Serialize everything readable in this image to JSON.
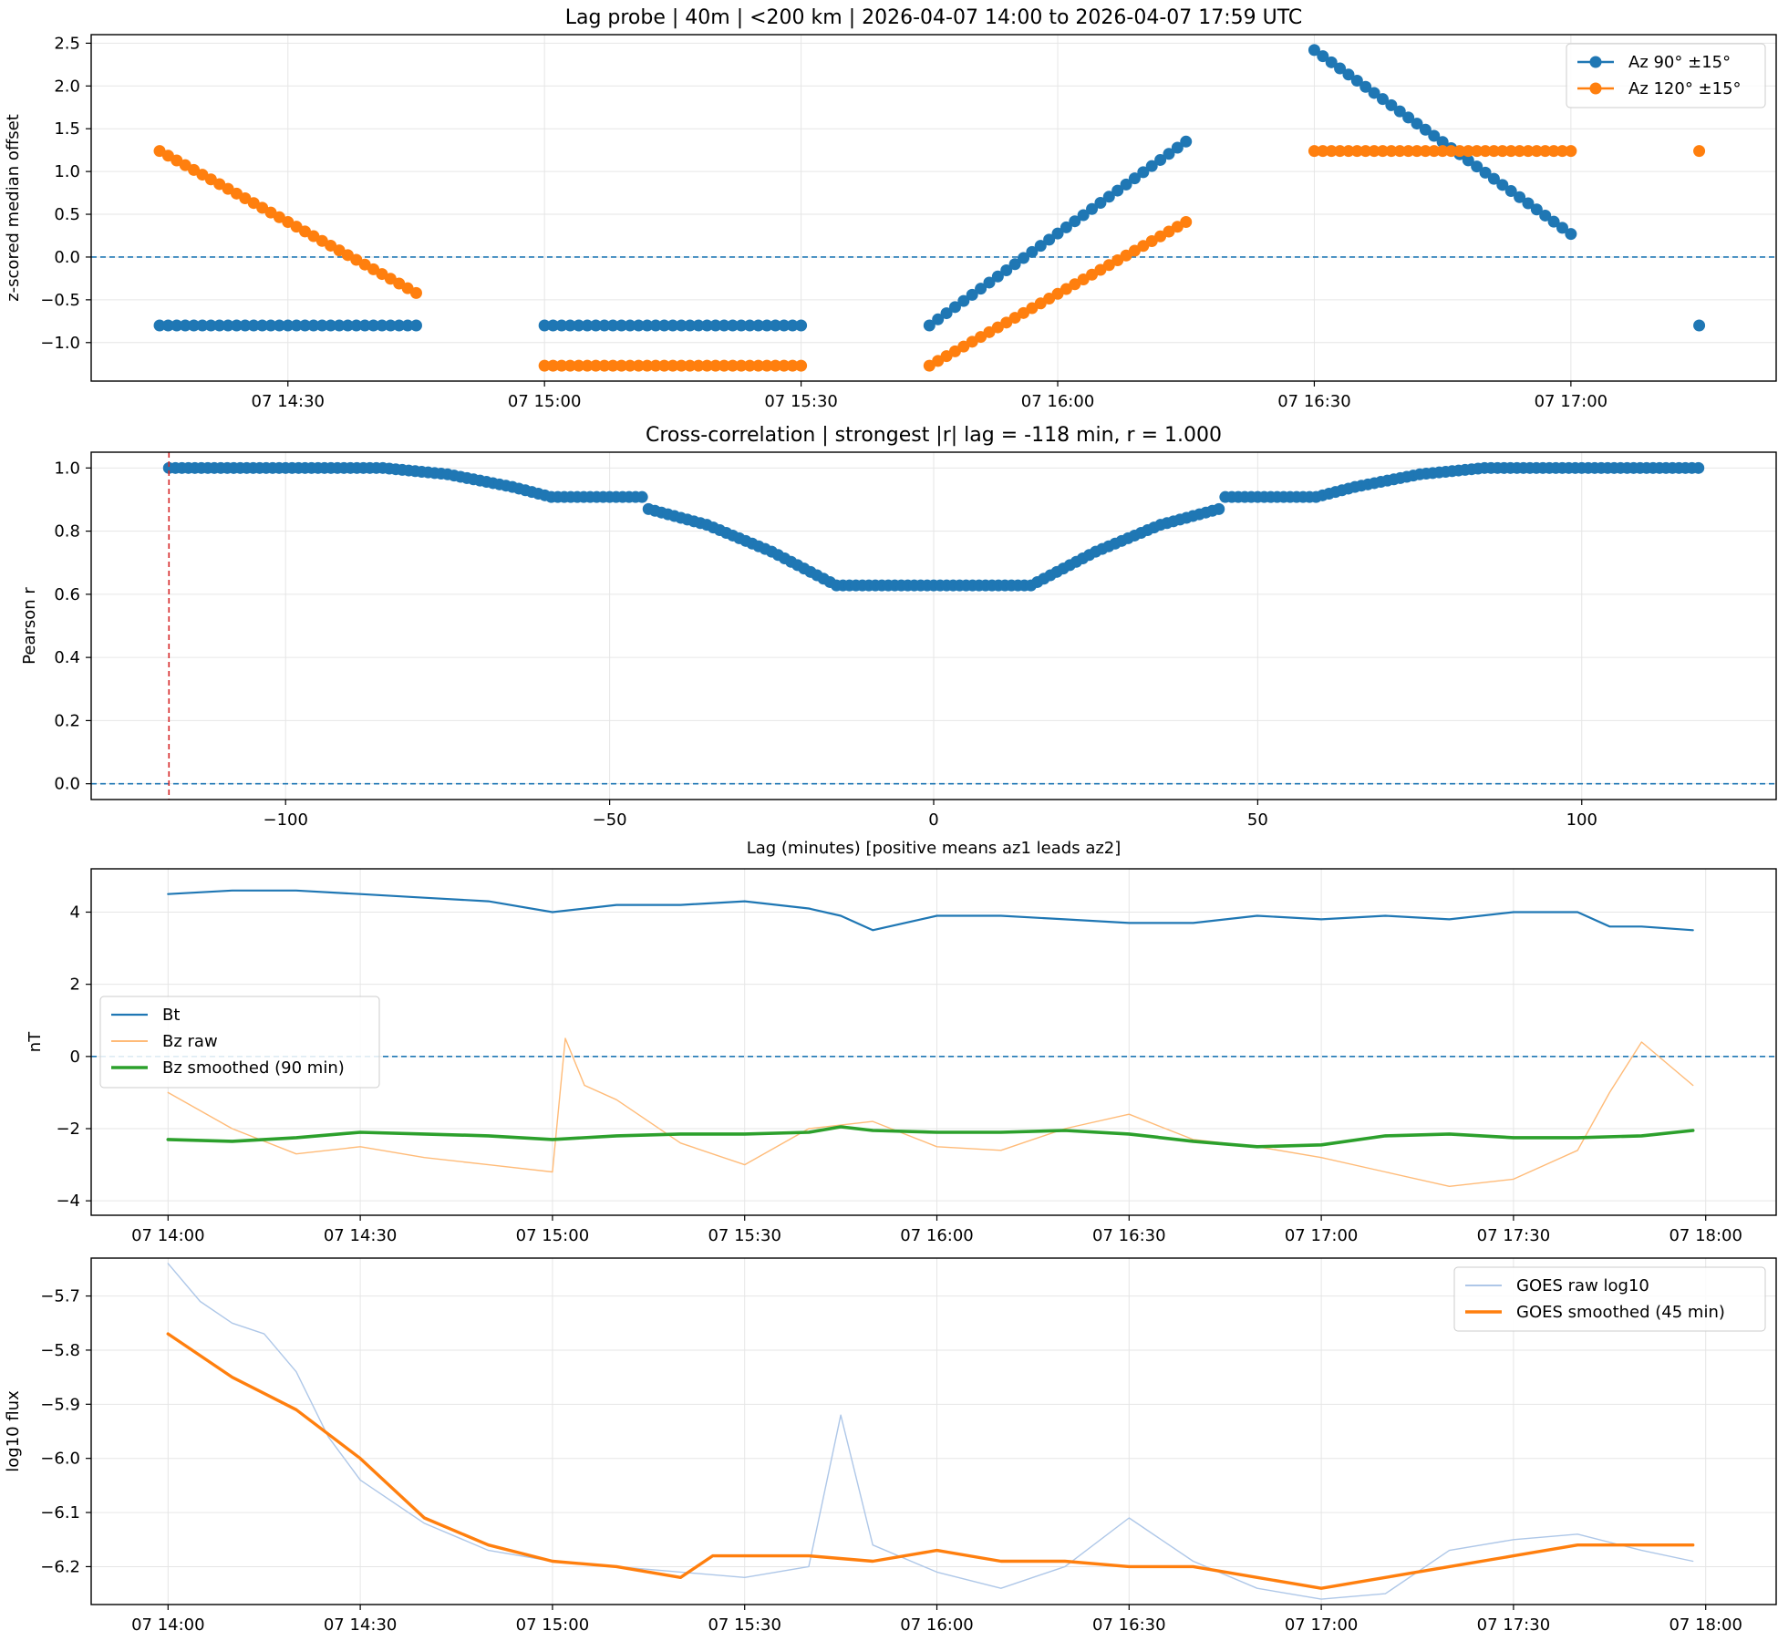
{
  "chart_data": [
    {
      "type": "scatter",
      "title": "Lag probe | 40m | <200 km | 2026-04-07 14:00 to 2026-04-07 17:59 UTC",
      "xlabel": "",
      "ylabel": "z-scored median offset",
      "x_unit": "time (UTC, 2026-04-07)",
      "xlim": [
        "14:07",
        "17:24"
      ],
      "ylim": [
        -1.45,
        2.6
      ],
      "yticks": [
        -1.0,
        -0.5,
        0.0,
        0.5,
        1.0,
        1.5,
        2.0,
        2.5
      ],
      "xticks": [
        "14:30",
        "15:00",
        "15:30",
        "16:00",
        "16:30",
        "17:00"
      ],
      "xtick_labels": [
        "07 14:30",
        "07 15:00",
        "07 15:30",
        "07 16:00",
        "07 16:30",
        "07 17:00"
      ],
      "reference_line": 0,
      "legend_position": "top-right",
      "grid": true,
      "series": [
        {
          "name": "Az 90° ±15°",
          "color": "#1f77b4",
          "segments": [
            {
              "start": "14:15",
              "end": "14:45",
              "y_start": -0.8,
              "y_end": -0.8
            },
            {
              "start": "15:00",
              "end": "15:30",
              "y_start": -0.8,
              "y_end": -0.8
            },
            {
              "start": "15:45",
              "end": "16:15",
              "y_start": -0.8,
              "y_end": 1.35
            },
            {
              "start": "16:30",
              "end": "17:00",
              "y_start": 2.42,
              "y_end": 0.27
            },
            {
              "start": "17:15",
              "end": "17:15",
              "y_start": -0.8,
              "y_end": -0.8
            }
          ]
        },
        {
          "name": "Az 120° ±15°",
          "color": "#ff7f0e",
          "segments": [
            {
              "start": "14:15",
              "end": "14:45",
              "y_start": 1.24,
              "y_end": -0.42
            },
            {
              "start": "15:00",
              "end": "15:30",
              "y_start": -1.27,
              "y_end": -1.27
            },
            {
              "start": "15:45",
              "end": "16:15",
              "y_start": -1.27,
              "y_end": 0.41
            },
            {
              "start": "16:30",
              "end": "17:00",
              "y_start": 1.24,
              "y_end": 1.24
            },
            {
              "start": "17:15",
              "end": "17:15",
              "y_start": 1.24,
              "y_end": 1.24
            }
          ]
        }
      ]
    },
    {
      "type": "scatter",
      "title": "Cross-correlation | strongest |r| lag = -118 min, r = 1.000",
      "xlabel": "Lag (minutes) [positive means az1 leads az2]",
      "ylabel": "Pearson r",
      "xlim": [
        -130,
        130
      ],
      "ylim": [
        -0.05,
        1.05
      ],
      "xticks": [
        -100,
        -50,
        0,
        50,
        100
      ],
      "xtick_labels": [
        "−100",
        "−50",
        "0",
        "50",
        "100"
      ],
      "yticks": [
        0.0,
        0.2,
        0.4,
        0.6,
        0.8,
        1.0
      ],
      "reference_line": 0,
      "highlight_lag": -118,
      "grid": true,
      "series": [
        {
          "name": "",
          "color": "#1f77b4",
          "lag_range": [
            -118,
            118
          ],
          "profile": [
            [
              0,
              0.628
            ],
            [
              15,
              0.628
            ],
            [
              25,
              0.735
            ],
            [
              35,
              0.82
            ],
            [
              44,
              0.87
            ],
            [
              45,
              0.908
            ],
            [
              59,
              0.908
            ],
            [
              65,
              0.94
            ],
            [
              75,
              0.98
            ],
            [
              85,
              1.0
            ],
            [
              118,
              1.0
            ]
          ]
        }
      ]
    },
    {
      "type": "line",
      "title": "",
      "xlabel": "",
      "ylabel": "nT",
      "x_unit": "time (UTC, 2026-04-07)",
      "xlim": [
        "13:48",
        "18:11"
      ],
      "ylim": [
        -4.4,
        5.2
      ],
      "yticks": [
        -4,
        -2,
        0,
        2,
        4
      ],
      "xticks": [
        "14:00",
        "14:30",
        "15:00",
        "15:30",
        "16:00",
        "16:30",
        "17:00",
        "17:30",
        "18:00"
      ],
      "xtick_labels": [
        "07 14:00",
        "07 14:30",
        "07 15:00",
        "07 15:30",
        "07 16:00",
        "07 16:30",
        "07 17:00",
        "07 17:30",
        "07 18:00"
      ],
      "reference_line": 0,
      "legend_position": "center-left",
      "grid": true,
      "series": [
        {
          "name": "Bt",
          "color": "#1f77b4",
          "x": [
            "14:00",
            "14:10",
            "14:20",
            "14:30",
            "14:40",
            "14:50",
            "15:00",
            "15:10",
            "15:20",
            "15:30",
            "15:40",
            "15:45",
            "15:50",
            "16:00",
            "16:10",
            "16:20",
            "16:30",
            "16:40",
            "16:50",
            "17:00",
            "17:10",
            "17:20",
            "17:30",
            "17:40",
            "17:45",
            "17:50",
            "17:58"
          ],
          "values": [
            4.5,
            4.6,
            4.6,
            4.5,
            4.4,
            4.3,
            4.0,
            4.2,
            4.2,
            4.3,
            4.1,
            3.9,
            3.5,
            3.9,
            3.9,
            3.8,
            3.7,
            3.7,
            3.9,
            3.8,
            3.9,
            3.8,
            4.0,
            4.0,
            3.6,
            3.6,
            3.5
          ]
        },
        {
          "name": "Bz raw",
          "color": "#ffbb78",
          "x": [
            "14:00",
            "14:10",
            "14:20",
            "14:30",
            "14:40",
            "14:50",
            "15:00",
            "15:02",
            "15:05",
            "15:10",
            "15:20",
            "15:30",
            "15:40",
            "15:50",
            "16:00",
            "16:10",
            "16:20",
            "16:30",
            "16:40",
            "16:50",
            "17:00",
            "17:10",
            "17:20",
            "17:30",
            "17:40",
            "17:45",
            "17:50",
            "17:58"
          ],
          "values": [
            -1.0,
            -2.0,
            -2.7,
            -2.5,
            -2.8,
            -3.0,
            -3.2,
            0.5,
            -0.8,
            -1.2,
            -2.4,
            -3.0,
            -2.0,
            -1.8,
            -2.5,
            -2.6,
            -2.0,
            -1.6,
            -2.3,
            -2.5,
            -2.8,
            -3.2,
            -3.6,
            -3.4,
            -2.6,
            -1.0,
            0.4,
            -0.8
          ]
        },
        {
          "name": "Bz smoothed (90 min)",
          "color": "#2ca02c",
          "x": [
            "14:00",
            "14:10",
            "14:20",
            "14:30",
            "14:40",
            "14:50",
            "15:00",
            "15:10",
            "15:20",
            "15:30",
            "15:40",
            "15:45",
            "15:50",
            "16:00",
            "16:10",
            "16:20",
            "16:30",
            "16:40",
            "16:50",
            "17:00",
            "17:10",
            "17:20",
            "17:30",
            "17:40",
            "17:50",
            "17:58"
          ],
          "values": [
            -2.3,
            -2.35,
            -2.25,
            -2.1,
            -2.15,
            -2.2,
            -2.3,
            -2.2,
            -2.15,
            -2.15,
            -2.1,
            -1.95,
            -2.05,
            -2.1,
            -2.1,
            -2.05,
            -2.15,
            -2.35,
            -2.5,
            -2.45,
            -2.2,
            -2.15,
            -2.25,
            -2.25,
            -2.2,
            -2.05
          ]
        }
      ]
    },
    {
      "type": "line",
      "title": "",
      "xlabel": "",
      "ylabel": "log10 flux",
      "x_unit": "time (UTC, 2026-04-07)",
      "xlim": [
        "13:48",
        "18:11"
      ],
      "ylim": [
        -6.27,
        -5.63
      ],
      "yticks": [
        -6.2,
        -6.1,
        -6.0,
        -5.9,
        -5.8,
        -5.7
      ],
      "xticks": [
        "14:00",
        "14:30",
        "15:00",
        "15:30",
        "16:00",
        "16:30",
        "17:00",
        "17:30",
        "18:00"
      ],
      "xtick_labels": [
        "07 14:00",
        "07 14:30",
        "07 15:00",
        "07 15:30",
        "07 16:00",
        "07 16:30",
        "07 17:00",
        "07 17:30",
        "07 18:00"
      ],
      "legend_position": "top-right",
      "grid": true,
      "series": [
        {
          "name": "GOES raw log10",
          "color": "#aec7e8",
          "x": [
            "14:00",
            "14:05",
            "14:10",
            "14:15",
            "14:20",
            "14:25",
            "14:30",
            "14:40",
            "14:50",
            "15:00",
            "15:10",
            "15:20",
            "15:30",
            "15:40",
            "15:45",
            "15:50",
            "16:00",
            "16:10",
            "16:20",
            "16:30",
            "16:40",
            "16:50",
            "17:00",
            "17:10",
            "17:20",
            "17:30",
            "17:40",
            "17:50",
            "17:58"
          ],
          "values": [
            -5.64,
            -5.71,
            -5.75,
            -5.77,
            -5.84,
            -5.96,
            -6.04,
            -6.12,
            -6.17,
            -6.19,
            -6.2,
            -6.21,
            -6.22,
            -6.2,
            -5.92,
            -6.16,
            -6.21,
            -6.24,
            -6.2,
            -6.11,
            -6.19,
            -6.24,
            -6.26,
            -6.25,
            -6.17,
            -6.15,
            -6.14,
            -6.17,
            -6.19
          ]
        },
        {
          "name": "GOES smoothed (45 min)",
          "color": "#ff7f0e",
          "x": [
            "14:00",
            "14:10",
            "14:20",
            "14:30",
            "14:40",
            "14:50",
            "15:00",
            "15:10",
            "15:20",
            "15:25",
            "15:40",
            "15:50",
            "16:00",
            "16:10",
            "16:20",
            "16:30",
            "16:40",
            "16:50",
            "17:00",
            "17:10",
            "17:20",
            "17:30",
            "17:40",
            "17:50",
            "17:58"
          ],
          "values": [
            -5.77,
            -5.85,
            -5.91,
            -6.0,
            -6.11,
            -6.16,
            -6.19,
            -6.2,
            -6.22,
            -6.18,
            -6.18,
            -6.19,
            -6.17,
            -6.19,
            -6.19,
            -6.2,
            -6.2,
            -6.22,
            -6.24,
            -6.22,
            -6.2,
            -6.18,
            -6.16,
            -6.16,
            -6.16
          ]
        }
      ]
    }
  ]
}
